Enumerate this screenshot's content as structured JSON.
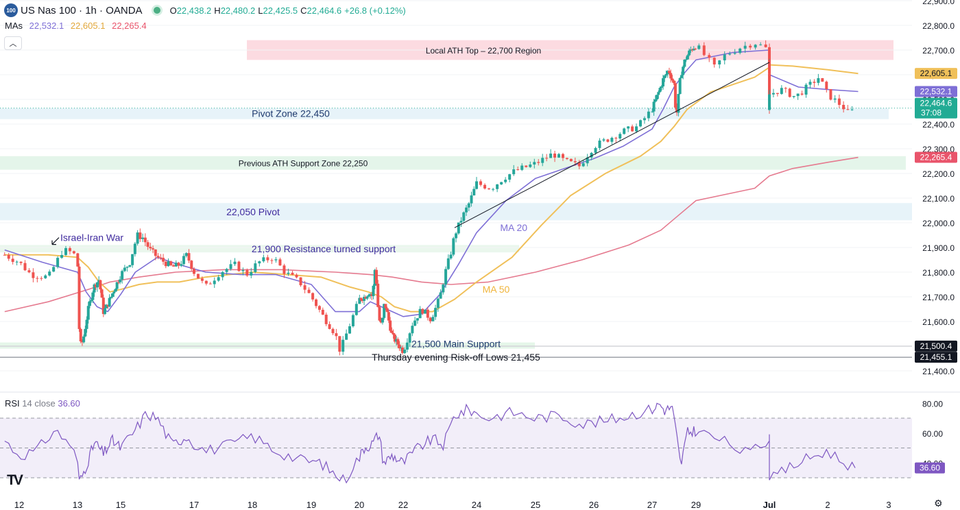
{
  "header": {
    "logo_text": "100",
    "symbol": "US Nas 100 · 1h · OANDA",
    "open_label": "O",
    "open": "22,438.2",
    "high_label": "H",
    "high": "22,480.2",
    "low_label": "L",
    "low": "22,425.5",
    "close_label": "C",
    "close": "22,464.6",
    "change": "+26.8 (+0.12%)"
  },
  "mas_legend": {
    "label": "MAs",
    "ma20": "22,532.1",
    "ma50": "22,605.1",
    "ma200": "22,265.4"
  },
  "collapse_icon": "chevron-up-icon",
  "colors": {
    "ma20": "#7e6fd6",
    "ma50": "#f0c05a",
    "ma200": "#e57a8f",
    "up": "#26a69a",
    "down": "#ef5350",
    "rsi": "#7e57c2"
  },
  "rsi_legend": {
    "label": "RSI",
    "params": "14 close",
    "value": "36.60"
  },
  "tv_logo_text": "TV",
  "settings_icon": "gear-icon",
  "chart_data": {
    "type": "candlestick",
    "y_ticks": [
      "22,900.0",
      "22,800.0",
      "22,700.0",
      "22,600.0",
      "22,500.0",
      "22,400.0",
      "22,300.0",
      "22,200.0",
      "22,100.0",
      "22,000.0",
      "21,900.0",
      "21,800.0",
      "21,700.0",
      "21,600.0",
      "21,500.0",
      "21,400.0"
    ],
    "ylim": [
      21400,
      22900
    ],
    "x_ticks": [
      "12",
      "13",
      "15",
      "17",
      "18",
      "19",
      "20",
      "22",
      "24",
      "25",
      "26",
      "27",
      "29",
      "Jul",
      "2",
      "3"
    ],
    "price_labels": [
      {
        "value": 22605.1,
        "text": "22,605.1",
        "color": "#f0c05a"
      },
      {
        "value": 22532.1,
        "text": "22,532.1",
        "color": "#7e6fd6"
      },
      {
        "value": 22464.6,
        "text": "22,464.6",
        "sub": "37:08",
        "color": "#22ab94"
      },
      {
        "value": 22265.4,
        "text": "22,265.4",
        "color": "#e9546b"
      },
      {
        "value": 21500.4,
        "text": "21,500.4",
        "color": "#131722"
      },
      {
        "value": 21455.1,
        "text": "21,455.1",
        "color": "#131722"
      }
    ],
    "zones": [
      {
        "label": "Local ATH Top – 22,700 Region",
        "y1": 22660,
        "y2": 22740
      },
      {
        "label": "Pivot Zone 22,450",
        "y1": 22420,
        "y2": 22465
      },
      {
        "label": "Previous ATH Support Zone 22,250",
        "y1": 22215,
        "y2": 22270
      },
      {
        "label": "22,050 Pivot",
        "y1": 22010,
        "y2": 22080
      },
      {
        "label": "21,900 Resistance turned support",
        "y1": 21880,
        "y2": 21910
      },
      {
        "label": "21,500 Main Support",
        "y1": 21490,
        "y2": 21515
      }
    ],
    "hlines": [
      {
        "label": "Thursday evening Risk-off Lows 21,455",
        "value": 21455
      },
      {
        "value": 21500
      }
    ],
    "annotations": [
      {
        "text": "Israel-Iran War",
        "x_day": 12.8,
        "y": 21940
      },
      {
        "text": "MA 20",
        "x_day": 24.4,
        "y": 21980
      },
      {
        "text": "MA 50",
        "x_day": 24.1,
        "y": 21730
      }
    ],
    "trendline": {
      "from": {
        "x_day": 23.4,
        "y": 21980
      },
      "to": {
        "x_day": 30.95,
        "y": 22650
      }
    },
    "close_path": [
      [
        11.75,
        21870
      ],
      [
        12.0,
        21840
      ],
      [
        12.2,
        21790
      ],
      [
        12.5,
        21780
      ],
      [
        12.75,
        21890
      ],
      [
        12.9,
        21880
      ],
      [
        13.0,
        21860
      ],
      [
        13.1,
        21500
      ],
      [
        13.25,
        21520
      ],
      [
        13.5,
        21650
      ],
      [
        13.75,
        21740
      ],
      [
        14.0,
        21770
      ],
      [
        14.2,
        21640
      ],
      [
        14.35,
        21660
      ],
      [
        14.6,
        21710
      ],
      [
        14.85,
        21760
      ],
      [
        15.0,
        21790
      ],
      [
        15.25,
        21840
      ],
      [
        15.45,
        21950
      ],
      [
        15.6,
        21940
      ],
      [
        15.8,
        21890
      ],
      [
        16.0,
        21860
      ],
      [
        16.2,
        21840
      ],
      [
        16.4,
        21820
      ],
      [
        16.6,
        21830
      ],
      [
        16.8,
        21870
      ],
      [
        17.0,
        21800
      ],
      [
        17.2,
        21740
      ],
      [
        17.45,
        21800
      ],
      [
        17.7,
        21830
      ],
      [
        17.9,
        21790
      ],
      [
        18.1,
        21840
      ],
      [
        18.35,
        21860
      ],
      [
        18.55,
        21800
      ],
      [
        18.8,
        21760
      ],
      [
        19.0,
        21700
      ],
      [
        19.25,
        21620
      ],
      [
        19.5,
        21550
      ],
      [
        19.6,
        21480
      ],
      [
        19.75,
        21560
      ],
      [
        20.0,
        21690
      ],
      [
        20.25,
        21700
      ],
      [
        20.45,
        21720
      ],
      [
        20.6,
        21700
      ],
      [
        20.75,
        21850
      ],
      [
        20.8,
        21700
      ],
      [
        20.95,
        21580
      ],
      [
        21.05,
        21600
      ],
      [
        21.15,
        21680
      ],
      [
        21.5,
        21540
      ],
      [
        22.0,
        21480
      ],
      [
        22.25,
        21590
      ],
      [
        22.5,
        21650
      ],
      [
        22.75,
        21610
      ],
      [
        22.9,
        21660
      ],
      [
        23.0,
        21700
      ],
      [
        23.15,
        21800
      ],
      [
        23.3,
        21880
      ],
      [
        23.4,
        21950
      ],
      [
        23.6,
        22020
      ],
      [
        23.8,
        22080
      ],
      [
        24.0,
        22160
      ],
      [
        24.25,
        22140
      ],
      [
        24.45,
        22180
      ],
      [
        24.65,
        22210
      ],
      [
        25.0,
        22240
      ],
      [
        25.3,
        22280
      ],
      [
        25.5,
        22250
      ],
      [
        25.75,
        22230
      ],
      [
        26.0,
        22310
      ],
      [
        26.25,
        22340
      ],
      [
        26.5,
        22370
      ],
      [
        26.75,
        22390
      ],
      [
        27.0,
        22460
      ],
      [
        27.3,
        22530
      ],
      [
        27.5,
        22580
      ],
      [
        27.75,
        22620
      ],
      [
        28.0,
        22560
      ],
      [
        28.1,
        22420
      ],
      [
        28.3,
        22600
      ],
      [
        28.5,
        22660
      ],
      [
        28.75,
        22700
      ],
      [
        29.0,
        22720
      ],
      [
        29.25,
        22630
      ],
      [
        29.4,
        22680
      ],
      [
        29.6,
        22710
      ],
      [
        29.8,
        22730
      ],
      [
        30.0,
        22700
      ],
      [
        30.2,
        22680
      ],
      [
        30.4,
        22650
      ],
      [
        30.6,
        22640
      ],
      [
        30.75,
        22560
      ],
      [
        30.85,
        22440
      ],
      [
        31.0,
        22520
      ],
      [
        31.2,
        22540
      ],
      [
        31.45,
        22510
      ],
      [
        31.7,
        22560
      ],
      [
        31.85,
        22590
      ],
      [
        32.0,
        22520
      ],
      [
        32.25,
        22470
      ],
      [
        32.35,
        22440
      ],
      [
        32.45,
        22465
      ]
    ],
    "ma20_path": [
      [
        11.75,
        21890
      ],
      [
        12.4,
        21840
      ],
      [
        13.0,
        21800
      ],
      [
        13.4,
        21720
      ],
      [
        13.9,
        21660
      ],
      [
        14.4,
        21640
      ],
      [
        15.0,
        21710
      ],
      [
        15.4,
        21800
      ],
      [
        16.0,
        21860
      ],
      [
        16.6,
        21830
      ],
      [
        17.2,
        21800
      ],
      [
        17.8,
        21790
      ],
      [
        18.4,
        21790
      ],
      [
        19.0,
        21750
      ],
      [
        19.5,
        21640
      ],
      [
        20.0,
        21640
      ],
      [
        20.5,
        21680
      ],
      [
        21.0,
        21660
      ],
      [
        21.5,
        21640
      ],
      [
        22.0,
        21620
      ],
      [
        22.5,
        21630
      ],
      [
        23.0,
        21710
      ],
      [
        23.5,
        21830
      ],
      [
        24.0,
        21960
      ],
      [
        24.5,
        22090
      ],
      [
        25.0,
        22180
      ],
      [
        25.5,
        22220
      ],
      [
        26.0,
        22260
      ],
      [
        26.5,
        22310
      ],
      [
        27.0,
        22380
      ],
      [
        27.5,
        22460
      ],
      [
        28.0,
        22550
      ],
      [
        28.5,
        22610
      ],
      [
        29.0,
        22660
      ],
      [
        29.5,
        22690
      ],
      [
        30.0,
        22700
      ],
      [
        30.5,
        22660
      ],
      [
        31.0,
        22600
      ],
      [
        31.5,
        22550
      ],
      [
        32.0,
        22540
      ],
      [
        32.5,
        22532
      ]
    ],
    "ma50_path": [
      [
        11.75,
        21870
      ],
      [
        12.5,
        21870
      ],
      [
        13.0,
        21860
      ],
      [
        13.5,
        21820
      ],
      [
        14.0,
        21760
      ],
      [
        14.5,
        21720
      ],
      [
        15.0,
        21730
      ],
      [
        15.5,
        21750
      ],
      [
        16.0,
        21760
      ],
      [
        16.6,
        21760
      ],
      [
        17.2,
        21780
      ],
      [
        18.0,
        21800
      ],
      [
        18.6,
        21790
      ],
      [
        19.2,
        21780
      ],
      [
        19.8,
        21740
      ],
      [
        20.4,
        21720
      ],
      [
        21.0,
        21700
      ],
      [
        21.6,
        21660
      ],
      [
        22.2,
        21640
      ],
      [
        22.8,
        21640
      ],
      [
        23.4,
        21690
      ],
      [
        24.0,
        21760
      ],
      [
        24.6,
        21860
      ],
      [
        25.1,
        21990
      ],
      [
        25.6,
        22110
      ],
      [
        26.2,
        22200
      ],
      [
        26.8,
        22270
      ],
      [
        27.4,
        22330
      ],
      [
        28.0,
        22390
      ],
      [
        28.6,
        22460
      ],
      [
        29.2,
        22530
      ],
      [
        29.8,
        22590
      ],
      [
        30.4,
        22630
      ],
      [
        30.9,
        22640
      ],
      [
        31.4,
        22635
      ],
      [
        32.0,
        22620
      ],
      [
        32.5,
        22605
      ]
    ],
    "ma200_path": [
      [
        11.75,
        21640
      ],
      [
        12.5,
        21680
      ],
      [
        13.5,
        21730
      ],
      [
        14.5,
        21760
      ],
      [
        15.5,
        21780
      ],
      [
        16.5,
        21800
      ],
      [
        17.5,
        21810
      ],
      [
        18.5,
        21810
      ],
      [
        19.5,
        21800
      ],
      [
        20.5,
        21790
      ],
      [
        21.5,
        21780
      ],
      [
        22.5,
        21760
      ],
      [
        23.3,
        21750
      ],
      [
        24.2,
        21760
      ],
      [
        25.0,
        21800
      ],
      [
        25.8,
        21850
      ],
      [
        26.6,
        21910
      ],
      [
        27.4,
        21970
      ],
      [
        28.2,
        22030
      ],
      [
        29.0,
        22090
      ],
      [
        29.8,
        22140
      ],
      [
        30.6,
        22190
      ],
      [
        31.4,
        22220
      ],
      [
        32.0,
        22245
      ],
      [
        32.5,
        22265
      ]
    ],
    "rsi": {
      "ylim": [
        20,
        90
      ],
      "y_ticks": [
        "80.00",
        "60.00",
        "40.00"
      ],
      "bands": {
        "upper": 70,
        "middle": 50,
        "lower": 30
      },
      "values_path": [
        [
          11.75,
          55
        ],
        [
          12.0,
          45
        ],
        [
          12.3,
          48
        ],
        [
          12.6,
          62
        ],
        [
          12.9,
          52
        ],
        [
          13.1,
          27
        ],
        [
          13.4,
          38
        ],
        [
          13.8,
          54
        ],
        [
          14.2,
          46
        ],
        [
          14.6,
          55
        ],
        [
          15.0,
          50
        ],
        [
          15.4,
          62
        ],
        [
          15.7,
          73
        ],
        [
          16.0,
          70
        ],
        [
          16.4,
          52
        ],
        [
          16.8,
          58
        ],
        [
          17.2,
          48
        ],
        [
          17.6,
          52
        ],
        [
          18.0,
          58
        ],
        [
          18.4,
          48
        ],
        [
          18.8,
          42
        ],
        [
          19.2,
          40
        ],
        [
          19.5,
          32
        ],
        [
          19.7,
          28
        ],
        [
          19.9,
          40
        ],
        [
          20.2,
          50
        ],
        [
          20.6,
          53
        ],
        [
          20.9,
          60
        ],
        [
          21.1,
          40
        ],
        [
          21.5,
          45
        ],
        [
          22.0,
          40
        ],
        [
          22.4,
          50
        ],
        [
          22.8,
          56
        ],
        [
          23.1,
          52
        ],
        [
          23.4,
          72
        ],
        [
          23.8,
          76
        ],
        [
          24.2,
          70
        ],
        [
          24.6,
          74
        ],
        [
          25.0,
          70
        ],
        [
          25.4,
          72
        ],
        [
          25.8,
          66
        ],
        [
          26.2,
          68
        ],
        [
          26.6,
          72
        ],
        [
          27.0,
          76
        ],
        [
          27.3,
          80
        ],
        [
          27.6,
          75
        ],
        [
          27.9,
          78
        ],
        [
          28.1,
          60
        ],
        [
          28.3,
          38
        ],
        [
          28.6,
          60
        ],
        [
          29.0,
          62
        ],
        [
          29.4,
          54
        ],
        [
          29.7,
          46
        ],
        [
          30.1,
          58
        ],
        [
          30.5,
          55
        ],
        [
          30.8,
          48
        ],
        [
          31.0,
          28
        ],
        [
          31.3,
          36
        ],
        [
          31.6,
          42
        ],
        [
          32.0,
          48
        ],
        [
          32.2,
          42
        ],
        [
          32.45,
          36.6
        ]
      ]
    }
  }
}
